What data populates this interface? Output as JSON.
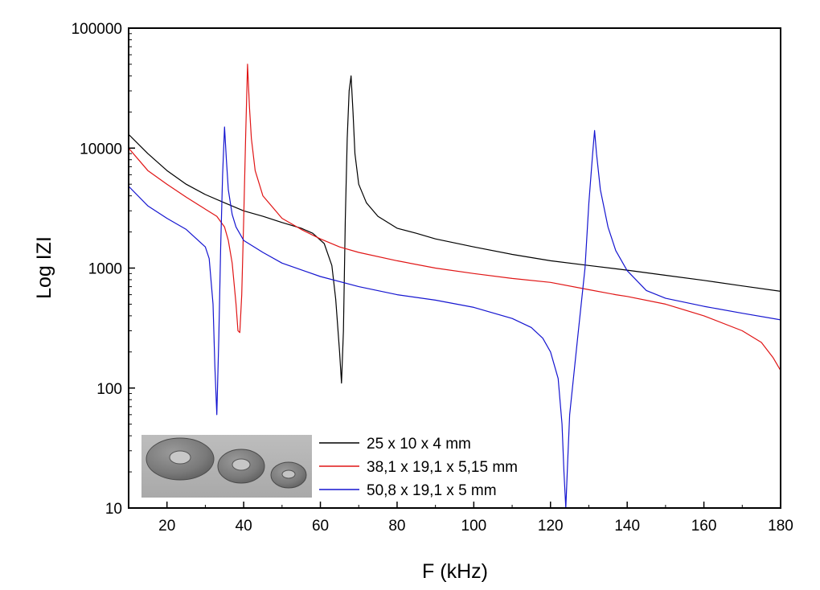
{
  "chart_data": {
    "type": "line",
    "title": "",
    "xlabel": "F (kHz)",
    "ylabel": "Log IZI",
    "xlim": [
      10,
      180
    ],
    "ylim": [
      10,
      100000
    ],
    "y_scale": "log",
    "grid": false,
    "legend_position": "bottom-left",
    "x_ticks": [
      20,
      40,
      60,
      80,
      100,
      120,
      140,
      160,
      180
    ],
    "x_tick_labels": [
      "20",
      "40",
      "60",
      "80",
      "100",
      "120",
      "140",
      "160",
      "180"
    ],
    "y_ticks": [
      10,
      100,
      1000,
      10000,
      100000
    ],
    "y_tick_labels": [
      "10",
      "100",
      "1000",
      "10000",
      "100000"
    ],
    "series": [
      {
        "name": "25 x 10 x 4 mm",
        "color": "#000000",
        "x": [
          10,
          15,
          20,
          25,
          30,
          35,
          40,
          45,
          50,
          55,
          58,
          61,
          63,
          64,
          65,
          65.5,
          66,
          66.5,
          67,
          67.5,
          68,
          68.5,
          69,
          70,
          72,
          75,
          80,
          85,
          90,
          100,
          110,
          120,
          130,
          140,
          150,
          160,
          170,
          180
        ],
        "y": [
          13000,
          9000,
          6500,
          5000,
          4100,
          3500,
          3000,
          2700,
          2400,
          2150,
          1950,
          1600,
          1050,
          550,
          200,
          110,
          300,
          2500,
          12000,
          30000,
          40000,
          20000,
          9000,
          5000,
          3500,
          2700,
          2150,
          1950,
          1750,
          1500,
          1300,
          1150,
          1050,
          960,
          870,
          790,
          710,
          640
        ]
      },
      {
        "name": "38,1 x 19,1 x 5,15 mm",
        "color": "#e01515",
        "x": [
          10,
          15,
          20,
          25,
          30,
          33,
          35,
          36,
          37,
          38,
          38.5,
          39,
          39.5,
          40,
          40.5,
          41,
          41.5,
          42,
          43,
          45,
          50,
          55,
          60,
          65,
          70,
          80,
          90,
          100,
          110,
          120,
          130,
          137,
          140,
          150,
          160,
          170,
          175,
          178,
          180
        ],
        "y": [
          10000,
          6500,
          5000,
          3900,
          3100,
          2700,
          2200,
          1700,
          1100,
          500,
          300,
          290,
          600,
          2500,
          12000,
          50000,
          22000,
          12000,
          6500,
          4000,
          2600,
          2100,
          1750,
          1500,
          1350,
          1150,
          1000,
          900,
          820,
          760,
          660,
          600,
          580,
          500,
          400,
          300,
          240,
          180,
          140
        ]
      },
      {
        "name": "50,8 x 19,1 x 5 mm",
        "color": "#1515d0",
        "x": [
          10,
          15,
          20,
          25,
          30,
          31,
          32,
          32.5,
          33,
          33.5,
          34,
          34.5,
          35,
          35.5,
          36,
          37,
          38,
          40,
          45,
          50,
          60,
          70,
          80,
          90,
          100,
          110,
          115,
          118,
          120,
          122,
          123,
          123.5,
          124,
          124.5,
          125,
          127,
          129,
          130,
          131,
          131.5,
          132,
          133,
          135,
          137,
          140,
          145,
          150,
          160,
          170,
          180
        ],
        "y": [
          4800,
          3300,
          2600,
          2100,
          1500,
          1200,
          500,
          150,
          60,
          250,
          1500,
          6000,
          15000,
          8000,
          4500,
          2800,
          2200,
          1700,
          1350,
          1100,
          850,
          700,
          600,
          540,
          470,
          380,
          320,
          260,
          200,
          120,
          50,
          20,
          10,
          25,
          60,
          250,
          1000,
          3500,
          9000,
          14000,
          9000,
          4500,
          2200,
          1400,
          950,
          650,
          560,
          480,
          420,
          370
        ]
      }
    ]
  }
}
